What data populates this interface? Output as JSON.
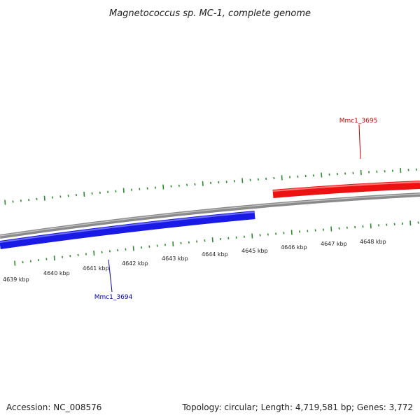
{
  "title": "Magnetococcus sp. MC-1, complete genome",
  "footer": {
    "accession": "Accession: NC_008576",
    "summary": "Topology: circular; Length: 4,719,581 bp; Genes: 3,772"
  },
  "colors": {
    "backbone": "#8a8a8a",
    "tick": "#2e8b2e",
    "forward_gene": "#ee1111",
    "reverse_gene": "#1a1ae6"
  },
  "scale": {
    "labels": [
      "4639 kbp",
      "4640 kbp",
      "4641 kbp",
      "4642 kbp",
      "4643 kbp",
      "4644 kbp",
      "4645 kbp",
      "4646 kbp",
      "4647 kbp",
      "4648 kbp"
    ]
  },
  "genes": [
    {
      "name": "Mmc1_3695",
      "strand": "forward",
      "color": "#cc0000"
    },
    {
      "name": "Mmc1_3694",
      "strand": "reverse",
      "color": "#0000aa"
    }
  ]
}
